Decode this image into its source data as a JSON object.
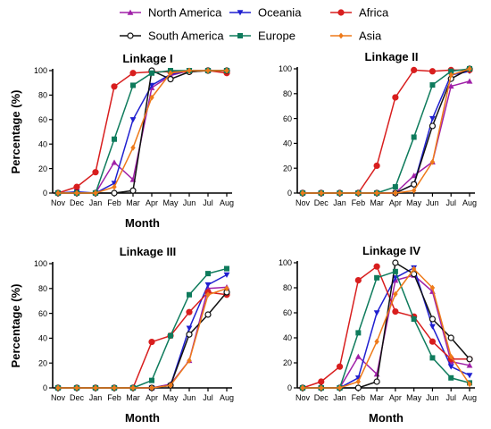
{
  "legend": [
    {
      "name": "North America",
      "color": "#a020a8",
      "marker": "triangle-up"
    },
    {
      "name": "Oceania",
      "color": "#1f1fd0",
      "marker": "triangle-down"
    },
    {
      "name": "Africa",
      "color": "#d81e1e",
      "marker": "circle"
    },
    {
      "name": "South America",
      "color": "#111111",
      "marker": "circle-open"
    },
    {
      "name": "Europe",
      "color": "#0e7b5c",
      "marker": "square"
    },
    {
      "name": "Asia",
      "color": "#ee7a1a",
      "marker": "diamond"
    }
  ],
  "chart_data": [
    {
      "type": "line",
      "title": "Linkage I",
      "xlabel": "Month",
      "ylabel": "Percentage (%)",
      "categories": [
        "Nov",
        "Dec",
        "Jan",
        "Feb",
        "Mar",
        "Apr",
        "May",
        "Jun",
        "Jul",
        "Aug"
      ],
      "ylim": [
        0,
        100
      ],
      "yticks": [
        0,
        20,
        40,
        60,
        80,
        100
      ],
      "grid": false,
      "series": [
        {
          "name": "North America",
          "values": [
            0,
            0,
            0,
            25,
            11,
            86,
            96,
            100,
            100,
            100
          ]
        },
        {
          "name": "Oceania",
          "values": [
            0,
            1,
            0,
            8,
            60,
            88,
            97,
            100,
            100,
            100
          ]
        },
        {
          "name": "Africa",
          "values": [
            0,
            5,
            17,
            87,
            98,
            99,
            99,
            99,
            100,
            98
          ]
        },
        {
          "name": "South America",
          "values": [
            0,
            0,
            0,
            0,
            2,
            100,
            93,
            99,
            100,
            100
          ]
        },
        {
          "name": "Europe",
          "values": [
            0,
            0,
            0,
            44,
            88,
            98,
            100,
            100,
            100,
            100
          ]
        },
        {
          "name": "Asia",
          "values": [
            0,
            0,
            0,
            5,
            37,
            78,
            98,
            100,
            100,
            100
          ]
        }
      ]
    },
    {
      "type": "line",
      "title": "Linkage II",
      "xlabel": "",
      "ylabel": "",
      "categories": [
        "Nov",
        "Dec",
        "Jan",
        "Feb",
        "Mar",
        "Apr",
        "May",
        "Jun",
        "Jul",
        "Aug"
      ],
      "ylim": [
        0,
        100
      ],
      "yticks": [
        0,
        20,
        40,
        60,
        80,
        100
      ],
      "grid": false,
      "series": [
        {
          "name": "North America",
          "values": [
            0,
            0,
            0,
            0,
            0,
            0,
            14,
            25,
            86,
            90
          ]
        },
        {
          "name": "Oceania",
          "values": [
            0,
            0,
            0,
            0,
            0,
            0,
            7,
            60,
            95,
            98
          ]
        },
        {
          "name": "Africa",
          "values": [
            0,
            0,
            0,
            0,
            22,
            77,
            99,
            98,
            99,
            99
          ]
        },
        {
          "name": "South America",
          "values": [
            0,
            0,
            0,
            0,
            0,
            0,
            7,
            54,
            92,
            100
          ]
        },
        {
          "name": "Europe",
          "values": [
            0,
            0,
            0,
            0,
            0,
            5,
            45,
            87,
            98,
            100
          ]
        },
        {
          "name": "Asia",
          "values": [
            0,
            0,
            0,
            0,
            0,
            0,
            2,
            25,
            95,
            100
          ]
        }
      ]
    },
    {
      "type": "line",
      "title": "Linkage III",
      "xlabel": "Month",
      "ylabel": "Percentage (%)",
      "categories": [
        "Nov",
        "Dec",
        "Jan",
        "Feb",
        "Mar",
        "Apr",
        "May",
        "Jun",
        "Jul",
        "Aug"
      ],
      "ylim": [
        0,
        100
      ],
      "yticks": [
        0,
        20,
        40,
        60,
        80,
        100
      ],
      "grid": false,
      "series": [
        {
          "name": "North America",
          "values": [
            0,
            0,
            0,
            0,
            0,
            0,
            3,
            22,
            80,
            81
          ]
        },
        {
          "name": "Oceania",
          "values": [
            0,
            0,
            0,
            0,
            0,
            0,
            2,
            48,
            83,
            91
          ]
        },
        {
          "name": "Africa",
          "values": [
            0,
            0,
            0,
            0,
            0,
            37,
            42,
            61,
            77,
            75
          ]
        },
        {
          "name": "South America",
          "values": [
            0,
            0,
            0,
            0,
            0,
            0,
            2,
            43,
            59,
            77
          ]
        },
        {
          "name": "Europe",
          "values": [
            0,
            0,
            0,
            0,
            0,
            6,
            42,
            75,
            92,
            96
          ]
        },
        {
          "name": "Asia",
          "values": [
            0,
            0,
            0,
            0,
            0,
            0,
            2,
            22,
            75,
            80
          ]
        }
      ]
    },
    {
      "type": "line",
      "title": "Linkage IV",
      "xlabel": "Month",
      "ylabel": "",
      "categories": [
        "Nov",
        "Dec",
        "Jan",
        "Feb",
        "Mar",
        "Apr",
        "May",
        "Jun",
        "Jul",
        "Aug"
      ],
      "ylim": [
        0,
        100
      ],
      "yticks": [
        0,
        20,
        40,
        60,
        80,
        100
      ],
      "grid": false,
      "series": [
        {
          "name": "North America",
          "values": [
            0,
            0,
            0,
            25,
            11,
            86,
            90,
            77,
            21,
            18
          ]
        },
        {
          "name": "Oceania",
          "values": [
            0,
            0,
            0,
            8,
            60,
            88,
            96,
            49,
            17,
            10
          ]
        },
        {
          "name": "Africa",
          "values": [
            0,
            5,
            17,
            86,
            97,
            61,
            57,
            37,
            23,
            23
          ]
        },
        {
          "name": "South America",
          "values": [
            0,
            0,
            0,
            0,
            5,
            100,
            91,
            55,
            40,
            23
          ]
        },
        {
          "name": "Europe",
          "values": [
            0,
            0,
            0,
            44,
            88,
            93,
            55,
            24,
            8,
            4
          ]
        },
        {
          "name": "Asia",
          "values": [
            0,
            0,
            0,
            5,
            37,
            75,
            95,
            80,
            25,
            3
          ]
        }
      ]
    }
  ]
}
